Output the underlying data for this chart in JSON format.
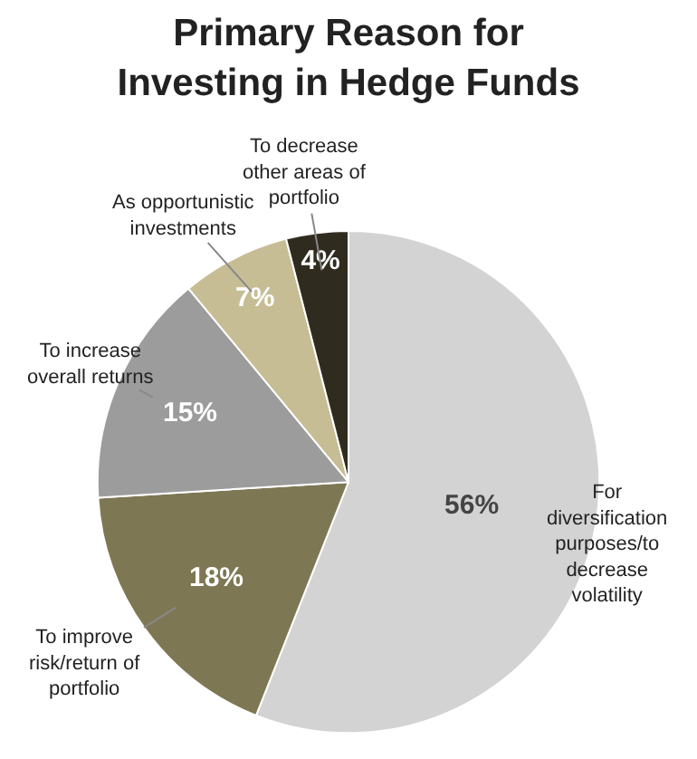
{
  "chart_data": {
    "type": "pie",
    "title": "Primary Reason for Investing in Hedge Funds",
    "categories": [
      "For diversification purposes/to decrease volatility",
      "To improve risk/return of portfolio",
      "To increase overall returns",
      "As opportunistic investments",
      "To decrease other areas of portfolio"
    ],
    "values": [
      56,
      18,
      15,
      7,
      4
    ],
    "colors": [
      "#d3d3d3",
      "#7d7753",
      "#9c9c9c",
      "#c6bd95",
      "#2f2c1f"
    ],
    "value_labels": [
      "56%",
      "18%",
      "15%",
      "7%",
      "4%"
    ],
    "legend": false
  }
}
